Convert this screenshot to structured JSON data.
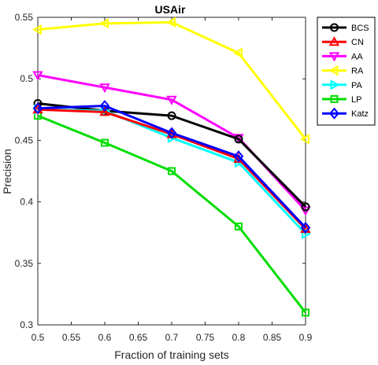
{
  "chart_data": {
    "type": "line",
    "title": "USAir",
    "xlabel": "Fraction of training sets",
    "ylabel": "Precision",
    "xlim": [
      0.5,
      0.9
    ],
    "ylim": [
      0.3,
      0.55
    ],
    "xticks": [
      0.5,
      0.55,
      0.6,
      0.65,
      0.7,
      0.75,
      0.8,
      0.85,
      0.9
    ],
    "yticks": [
      0.3,
      0.35,
      0.4,
      0.45,
      0.5,
      0.55
    ],
    "xtick_labels": [
      "0.5",
      "0.55",
      "0.6",
      "0.65",
      "0.7",
      "0.75",
      "0.8",
      "0.85",
      "0.9"
    ],
    "ytick_labels": [
      "0.3",
      "0.35",
      "0.4",
      "0.45",
      "0.5",
      "0.55"
    ],
    "x": [
      0.5,
      0.6,
      0.7,
      0.8,
      0.9
    ],
    "grid": false,
    "legend_position": "top-right",
    "series": [
      {
        "name": "BCS",
        "values": [
          0.48,
          0.474,
          0.47,
          0.451,
          0.396
        ],
        "color": "#000000",
        "marker": "circle"
      },
      {
        "name": "CN",
        "values": [
          0.475,
          0.473,
          0.455,
          0.435,
          0.378
        ],
        "color": "#ff0000",
        "marker": "triangle-up"
      },
      {
        "name": "AA",
        "values": [
          0.503,
          0.493,
          0.483,
          0.452,
          0.393
        ],
        "color": "#ff00ff",
        "marker": "triangle-down"
      },
      {
        "name": "RA",
        "values": [
          0.54,
          0.545,
          0.546,
          0.521,
          0.451
        ],
        "color": "#ffff00",
        "marker": "triangle-left"
      },
      {
        "name": "PA",
        "values": [
          0.475,
          0.474,
          0.452,
          0.432,
          0.374
        ],
        "color": "#00ffff",
        "marker": "triangle-right"
      },
      {
        "name": "LP",
        "values": [
          0.47,
          0.448,
          0.425,
          0.38,
          0.31
        ],
        "color": "#00dd00",
        "marker": "square"
      },
      {
        "name": "Katz",
        "values": [
          0.476,
          0.478,
          0.456,
          0.437,
          0.379
        ],
        "color": "#0000ff",
        "marker": "diamond"
      }
    ]
  }
}
